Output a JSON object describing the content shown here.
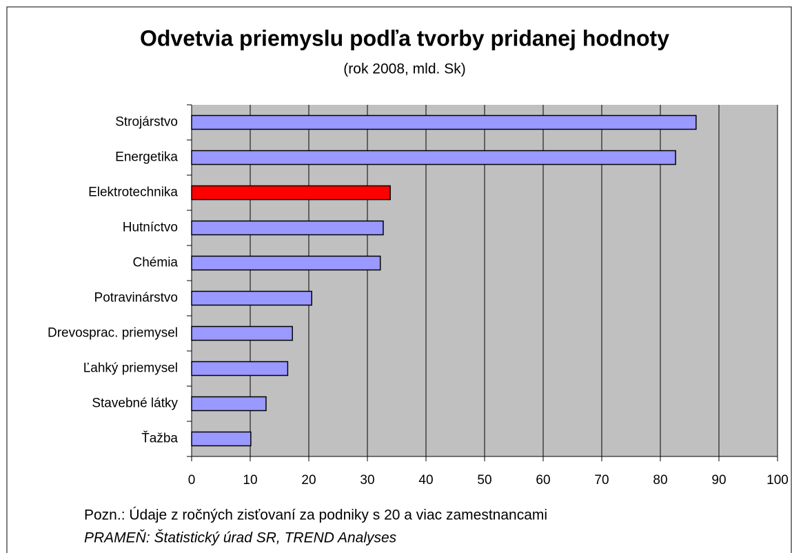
{
  "chart_data": {
    "type": "bar",
    "orientation": "horizontal",
    "title": "Odvetvia priemyslu podľa tvorby pridanej hodnoty",
    "subtitle": "(rok 2008, mld. Sk)",
    "categories": [
      "Strojárstvo",
      "Energetika",
      "Elektrotechnika",
      "Hutníctvo",
      "Chémia",
      "Potravinárstvo",
      "Drevosprac. priemysel",
      "Ľahký priemysel",
      "Stavebné látky",
      "Ťažba"
    ],
    "values": [
      86.1,
      82.6,
      33.9,
      32.7,
      32.2,
      20.5,
      17.2,
      16.4,
      12.7,
      10.1
    ],
    "colors": [
      "#9999ff",
      "#9999ff",
      "#ff0000",
      "#9999ff",
      "#9999ff",
      "#9999ff",
      "#9999ff",
      "#9999ff",
      "#9999ff",
      "#9999ff"
    ],
    "xlim": [
      0,
      100
    ],
    "xticks": [
      0,
      10,
      20,
      30,
      40,
      50,
      60,
      70,
      80,
      90,
      100
    ],
    "grid": true,
    "plot_background": "#c0c0c0",
    "notes": [
      "Pozn.: Údaje z ročných zisťovaní za podniky s 20 a viac zamestnancami",
      "PRAMEŇ: Štatistický úrad SR, TREND Analyses"
    ]
  }
}
